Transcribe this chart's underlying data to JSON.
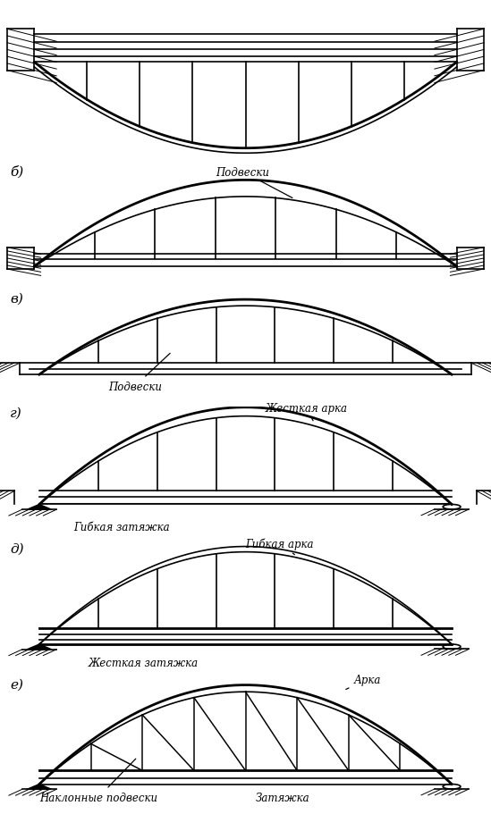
{
  "bg_color": "#ffffff",
  "line_color": "#000000",
  "panel_labels": [
    "",
    "б)",
    "в)",
    "г)",
    "д)",
    "е)"
  ],
  "annotations": {
    "p0": {
      "подвески": null
    },
    "p1": {
      "label": "Подвески"
    },
    "p2": {
      "label": "Подвески"
    },
    "p3": {
      "label1": "Жесткая арка",
      "label2": "Гибкая затяжка"
    },
    "p4": {
      "label1": "Гибкая арка",
      "label2": "Жесткая затяжка"
    },
    "p5": {
      "label1": "Арка",
      "label2": "Наклонные подвески",
      "label3": "Затяжка"
    }
  }
}
